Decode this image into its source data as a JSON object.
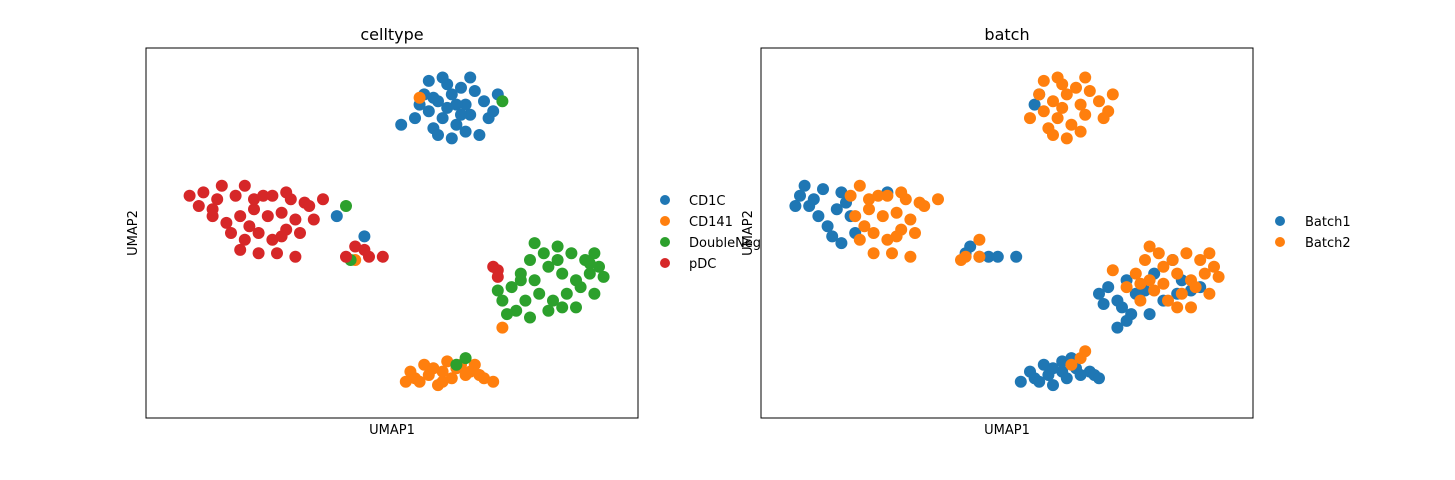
{
  "chart_data": [
    {
      "type": "scatter",
      "title": "celltype",
      "xlabel": "UMAP1",
      "ylabel": "UMAP2",
      "xlim": [
        0,
        100
      ],
      "ylim": [
        0,
        100
      ],
      "grid": false,
      "ticks": "none",
      "legend_placement": "right",
      "series": [
        {
          "name": "CD1C",
          "color": "#1f77b4",
          "points": [
            [
              60,
              89
            ],
            [
              63,
              91
            ],
            [
              58,
              86
            ],
            [
              66,
              88
            ],
            [
              61,
              84
            ],
            [
              64,
              82
            ],
            [
              59,
              81
            ],
            [
              67,
              85
            ],
            [
              62,
              94
            ],
            [
              65,
              93
            ],
            [
              57,
              91
            ],
            [
              68,
              92
            ],
            [
              70,
              89
            ],
            [
              55,
              84
            ],
            [
              60,
              79
            ],
            [
              63,
              78
            ],
            [
              66,
              80
            ],
            [
              71,
              84
            ],
            [
              56,
              88
            ],
            [
              64,
              88
            ],
            [
              58,
              95
            ],
            [
              61,
              96
            ],
            [
              67,
              96
            ],
            [
              52,
              82
            ],
            [
              69,
              79
            ],
            [
              73,
              91
            ],
            [
              62,
              87
            ],
            [
              65,
              85
            ],
            [
              59,
              90
            ],
            [
              72,
              86
            ],
            [
              38,
              55
            ],
            [
              44,
              49
            ]
          ]
        },
        {
          "name": "CD141",
          "color": "#ff7f0e",
          "points": [
            [
              55,
              7
            ],
            [
              58,
              8
            ],
            [
              61,
              9
            ],
            [
              64,
              10
            ],
            [
              67,
              9
            ],
            [
              56,
              6
            ],
            [
              60,
              5
            ],
            [
              63,
              7
            ],
            [
              66,
              8
            ],
            [
              69,
              8
            ],
            [
              54,
              9
            ],
            [
              57,
              11
            ],
            [
              62,
              12
            ],
            [
              65,
              11
            ],
            [
              59,
              10
            ],
            [
              68,
              11
            ],
            [
              70,
              7
            ],
            [
              53,
              6
            ],
            [
              72,
              6
            ],
            [
              61,
              6
            ],
            [
              56,
              90
            ],
            [
              74,
              22
            ],
            [
              42,
              42
            ]
          ]
        },
        {
          "name": "DoubleNeg",
          "color": "#2ca02c",
          "points": [
            [
              78,
              38
            ],
            [
              81,
              36
            ],
            [
              84,
              40
            ],
            [
              87,
              38
            ],
            [
              90,
              36
            ],
            [
              93,
              38
            ],
            [
              82,
              32
            ],
            [
              85,
              30
            ],
            [
              88,
              32
            ],
            [
              91,
              34
            ],
            [
              94,
              32
            ],
            [
              79,
              30
            ],
            [
              76,
              34
            ],
            [
              83,
              44
            ],
            [
              86,
              42
            ],
            [
              89,
              44
            ],
            [
              92,
              42
            ],
            [
              80,
              42
            ],
            [
              95,
              40
            ],
            [
              77,
              27
            ],
            [
              80,
              25
            ],
            [
              84,
              27
            ],
            [
              87,
              28
            ],
            [
              96,
              37
            ],
            [
              73,
              33
            ],
            [
              74,
              30
            ],
            [
              90,
              28
            ],
            [
              86,
              46
            ],
            [
              81,
              47
            ],
            [
              94,
              44
            ],
            [
              75,
              26
            ],
            [
              93,
              41
            ],
            [
              78,
              36
            ],
            [
              66,
              13
            ],
            [
              64,
              11
            ],
            [
              74,
              89
            ],
            [
              40,
              58
            ],
            [
              41,
              42
            ]
          ]
        },
        {
          "name": "pDC",
          "color": "#d62728",
          "points": [
            [
              8,
              58
            ],
            [
              11,
              55
            ],
            [
              14,
              53
            ],
            [
              17,
              55
            ],
            [
              20,
              57
            ],
            [
              23,
              55
            ],
            [
              26,
              56
            ],
            [
              29,
              54
            ],
            [
              12,
              60
            ],
            [
              16,
              61
            ],
            [
              20,
              60
            ],
            [
              24,
              61
            ],
            [
              28,
              60
            ],
            [
              31,
              59
            ],
            [
              15,
              50
            ],
            [
              18,
              48
            ],
            [
              21,
              50
            ],
            [
              24,
              48
            ],
            [
              27,
              51
            ],
            [
              30,
              50
            ],
            [
              17,
              45
            ],
            [
              21,
              44
            ],
            [
              25,
              44
            ],
            [
              29,
              43
            ],
            [
              6,
              61
            ],
            [
              9,
              62
            ],
            [
              13,
              64
            ],
            [
              18,
              64
            ],
            [
              22,
              61
            ],
            [
              27,
              62
            ],
            [
              32,
              58
            ],
            [
              35,
              60
            ],
            [
              11,
              57
            ],
            [
              33,
              54
            ],
            [
              19,
              52
            ],
            [
              26,
              49
            ],
            [
              42,
              46
            ],
            [
              40,
              43
            ],
            [
              45,
              43
            ],
            [
              48,
              43
            ],
            [
              72,
              40
            ],
            [
              73,
              39
            ],
            [
              73,
              37
            ],
            [
              44,
              45
            ]
          ]
        }
      ]
    },
    {
      "type": "scatter",
      "title": "batch",
      "xlabel": "UMAP1",
      "ylabel": "UMAP2",
      "xlim": [
        0,
        100
      ],
      "ylim": [
        0,
        100
      ],
      "grid": false,
      "ticks": "none",
      "legend_placement": "right",
      "series": [
        {
          "name": "Batch1",
          "color": "#1f77b4",
          "points": [
            [
              5,
              61
            ],
            [
              7,
              58
            ],
            [
              9,
              55
            ],
            [
              11,
              52
            ],
            [
              13,
              57
            ],
            [
              15,
              59
            ],
            [
              4,
              58
            ],
            [
              10,
              63
            ],
            [
              14,
              62
            ],
            [
              8,
              60
            ],
            [
              6,
              64
            ],
            [
              12,
              49
            ],
            [
              17,
              50
            ],
            [
              16,
              55
            ],
            [
              14,
              47
            ],
            [
              24,
              62
            ],
            [
              42,
              46
            ],
            [
              44,
              43
            ],
            [
              41,
              44
            ],
            [
              46,
              43
            ],
            [
              48,
              43
            ],
            [
              52,
              43
            ],
            [
              70,
              32
            ],
            [
              72,
              34
            ],
            [
              74,
              30
            ],
            [
              76,
              36
            ],
            [
              78,
              32
            ],
            [
              71,
              29
            ],
            [
              75,
              28
            ],
            [
              77,
              26
            ],
            [
              80,
              33
            ],
            [
              84,
              30
            ],
            [
              87,
              32
            ],
            [
              90,
              33
            ],
            [
              82,
              38
            ],
            [
              86,
              42
            ],
            [
              88,
              36
            ],
            [
              92,
              34
            ],
            [
              76,
              24
            ],
            [
              81,
              26
            ],
            [
              74,
              22
            ],
            [
              56,
              7
            ],
            [
              59,
              8
            ],
            [
              62,
              9
            ],
            [
              65,
              10
            ],
            [
              68,
              9
            ],
            [
              57,
              6
            ],
            [
              60,
              5
            ],
            [
              63,
              7
            ],
            [
              66,
              8
            ],
            [
              69,
              8
            ],
            [
              55,
              9
            ],
            [
              58,
              11
            ],
            [
              62,
              12
            ],
            [
              64,
              13
            ],
            [
              70,
              7
            ],
            [
              53,
              6
            ],
            [
              60,
              10
            ],
            [
              56,
              88
            ],
            [
              57,
              91
            ]
          ]
        },
        {
          "name": "Batch2",
          "color": "#ff7f0e",
          "points": [
            [
              60,
              89
            ],
            [
              63,
              91
            ],
            [
              58,
              86
            ],
            [
              66,
              88
            ],
            [
              61,
              84
            ],
            [
              64,
              82
            ],
            [
              59,
              81
            ],
            [
              67,
              85
            ],
            [
              62,
              94
            ],
            [
              65,
              93
            ],
            [
              57,
              91
            ],
            [
              68,
              92
            ],
            [
              70,
              89
            ],
            [
              55,
              84
            ],
            [
              60,
              79
            ],
            [
              63,
              78
            ],
            [
              66,
              80
            ],
            [
              71,
              84
            ],
            [
              58,
              95
            ],
            [
              61,
              96
            ],
            [
              67,
              96
            ],
            [
              72,
              86
            ],
            [
              73,
              91
            ],
            [
              62,
              87
            ],
            [
              20,
              57
            ],
            [
              23,
              55
            ],
            [
              26,
              56
            ],
            [
              29,
              54
            ],
            [
              17,
              55
            ],
            [
              16,
              61
            ],
            [
              20,
              60
            ],
            [
              24,
              61
            ],
            [
              28,
              60
            ],
            [
              31,
              59
            ],
            [
              18,
              48
            ],
            [
              21,
              50
            ],
            [
              24,
              48
            ],
            [
              27,
              51
            ],
            [
              30,
              50
            ],
            [
              21,
              44
            ],
            [
              25,
              44
            ],
            [
              29,
              43
            ],
            [
              18,
              64
            ],
            [
              22,
              61
            ],
            [
              27,
              62
            ],
            [
              32,
              58
            ],
            [
              35,
              60
            ],
            [
              26,
              49
            ],
            [
              19,
              52
            ],
            [
              41,
              43
            ],
            [
              44,
              43
            ],
            [
              40,
              42
            ],
            [
              44,
              48
            ],
            [
              66,
              13
            ],
            [
              64,
              11
            ],
            [
              67,
              15
            ],
            [
              78,
              38
            ],
            [
              81,
              36
            ],
            [
              84,
              40
            ],
            [
              87,
              38
            ],
            [
              90,
              36
            ],
            [
              93,
              38
            ],
            [
              85,
              30
            ],
            [
              88,
              32
            ],
            [
              91,
              34
            ],
            [
              94,
              32
            ],
            [
              83,
              44
            ],
            [
              86,
              42
            ],
            [
              89,
              44
            ],
            [
              92,
              42
            ],
            [
              80,
              42
            ],
            [
              95,
              40
            ],
            [
              73,
              39
            ],
            [
              79,
              30
            ],
            [
              76,
              34
            ],
            [
              87,
              28
            ],
            [
              90,
              28
            ],
            [
              81,
              46
            ],
            [
              94,
              44
            ],
            [
              96,
              37
            ],
            [
              82,
              33
            ],
            [
              84,
              35
            ],
            [
              79,
              35
            ]
          ]
        }
      ]
    }
  ]
}
